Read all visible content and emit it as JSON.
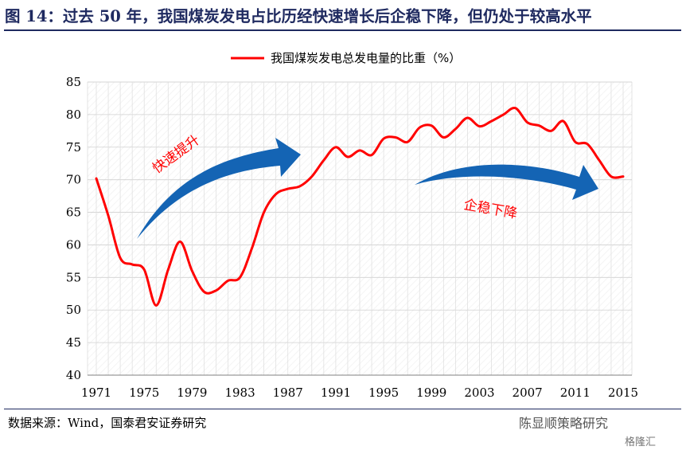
{
  "header": {
    "title": "图 14：过去 50 年，我国煤炭发电占比历经快速增长后企稳下降，但仍处于较高水平"
  },
  "footer": {
    "source": "数据来源：Wind，国泰君安证券研究",
    "watermark_main": "陈显顺策略研究",
    "watermark_sub": "格隆汇"
  },
  "chart_data": {
    "type": "line",
    "legend": "我国煤炭发电总发电量的比重（%）",
    "legend_position": "top-center",
    "grid": true,
    "ylim": [
      40,
      85
    ],
    "yticks": [
      "40",
      "45",
      "50",
      "55",
      "60",
      "65",
      "70",
      "75",
      "80",
      "85"
    ],
    "xlim": [
      1971,
      2015
    ],
    "xticks": [
      "1971",
      "1975",
      "1979",
      "1983",
      "1987",
      "1991",
      "1995",
      "1999",
      "2003",
      "2007",
      "2011",
      "2015"
    ],
    "series": [
      {
        "name": "我国煤炭发电总发电量的比重（%）",
        "color": "#ff0000",
        "x": [
          1971,
          1972,
          1973,
          1974,
          1975,
          1976,
          1977,
          1978,
          1979,
          1980,
          1981,
          1982,
          1983,
          1984,
          1985,
          1986,
          1987,
          1988,
          1989,
          1990,
          1991,
          1992,
          1993,
          1994,
          1995,
          1996,
          1997,
          1998,
          1999,
          2000,
          2001,
          2002,
          2003,
          2004,
          2005,
          2006,
          2007,
          2008,
          2009,
          2010,
          2011,
          2012,
          2013,
          2014,
          2015
        ],
        "values": [
          70.2,
          64.5,
          58.0,
          57.0,
          56.2,
          50.7,
          56.2,
          60.5,
          56.0,
          52.8,
          53.0,
          54.5,
          55.0,
          59.5,
          65.0,
          67.8,
          68.6,
          69.0,
          70.5,
          73.0,
          75.0,
          73.5,
          74.5,
          73.8,
          76.3,
          76.5,
          75.8,
          78.0,
          78.3,
          76.5,
          77.8,
          79.5,
          78.2,
          79.0,
          80.0,
          81.0,
          78.8,
          78.3,
          77.5,
          79.0,
          75.8,
          75.5,
          73.0,
          70.5,
          70.5
        ]
      }
    ],
    "annotations": [
      {
        "text": "快速提升",
        "color": "#ff0000"
      },
      {
        "text": "企稳下降",
        "color": "#ff0000"
      }
    ],
    "arrow_color": "#1464b4"
  }
}
